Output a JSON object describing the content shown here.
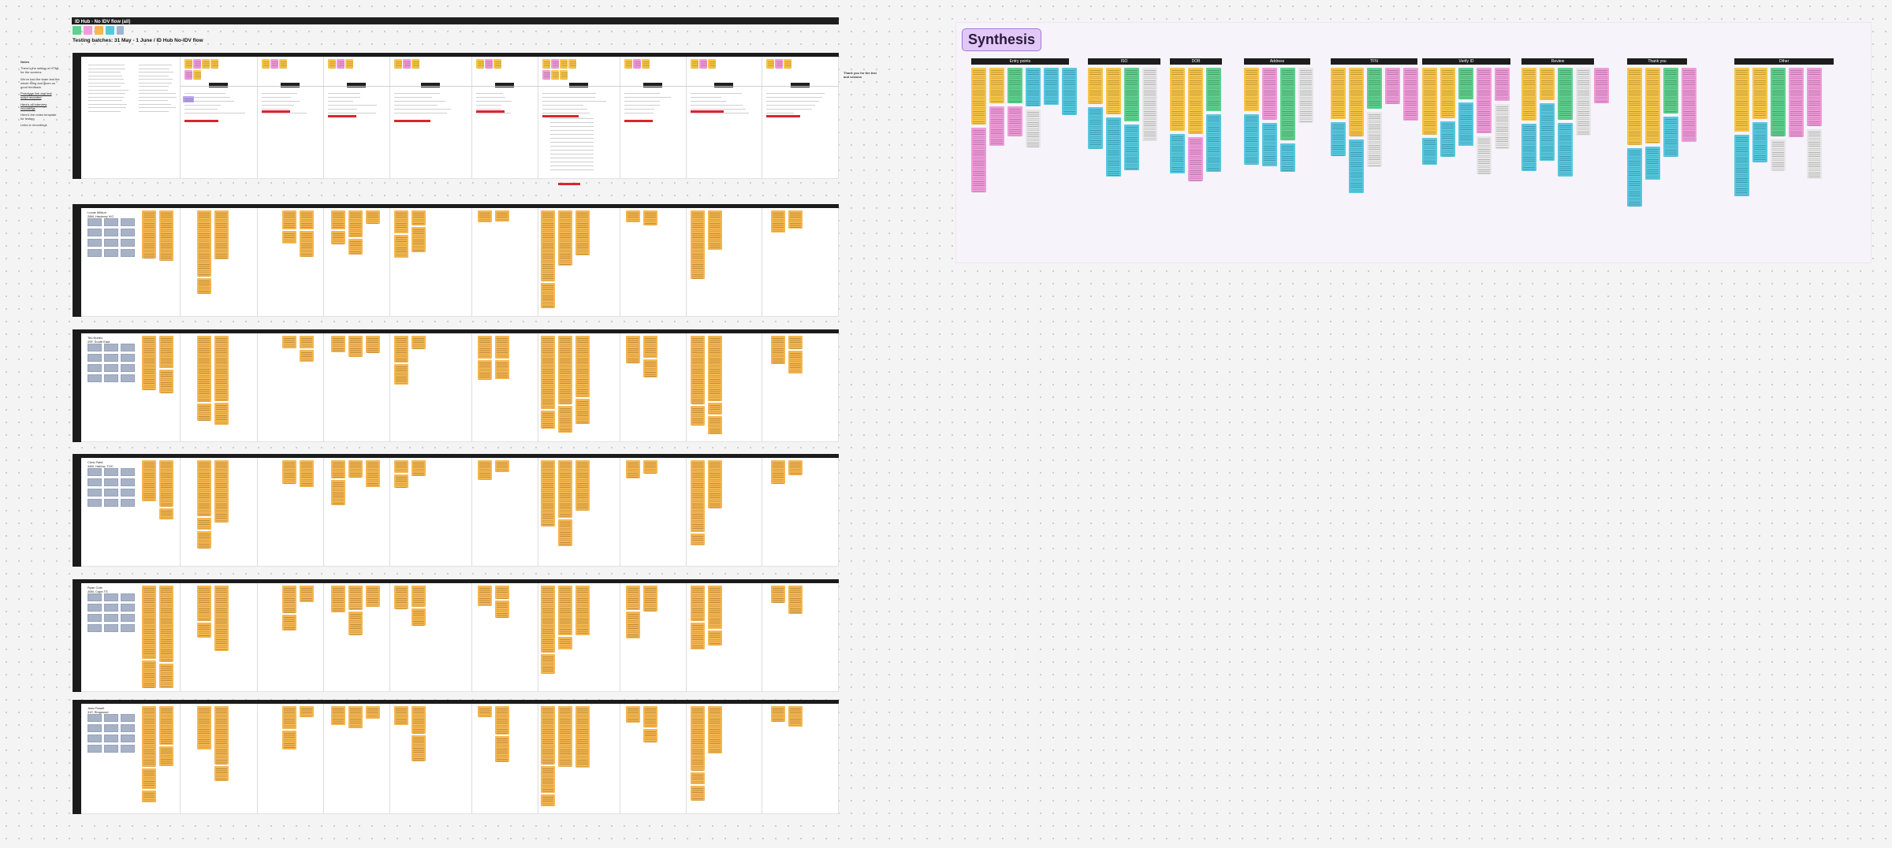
{
  "board": {
    "title": "ID Hub - No IDV flow (all)",
    "subtitle": "Testing batches: 31 May - 1 June / ID Hub No-IDV flow",
    "notes": {
      "heading": "Notes",
      "lines": [
        "There's the setting of HTML for the screens",
        "We've had the team test the whole thing and given us good feedback",
        "Prototype link and test script recorded",
        "Here's all interview recordings",
        "Here's the notes template for testing",
        "Links to recordings"
      ]
    },
    "sections": [
      {
        "participant": "Lucas Wilson\n28M, Hackney VIC"
      },
      {
        "participant": "Teo Nunez\n29F, South East"
      },
      {
        "participant": "Chris Patel\n34M, Harlow, TOC"
      },
      {
        "participant": "Ryan Cole\n26M, Cape TS"
      },
      {
        "participant": "Jess Powell\n31F, Ringwood"
      }
    ],
    "flow_sticky_cols": [
      "Ruh Reason & Intro",
      "Entry 1",
      "Entry 2",
      "Entry 3",
      "Entry 4",
      "Entry 5",
      "Entry 6",
      "Entry 7",
      "Entry 8",
      "Entry 9",
      "Entry 10"
    ],
    "feedback_heading": "Thank you for the test and session"
  },
  "synthesis": {
    "title": "Synthesis",
    "themes": [
      "Entry points",
      "ISO",
      "DOB",
      "Address",
      "TFN",
      "Verify ID",
      "Review",
      "Thank you",
      "Other"
    ]
  },
  "colors": {
    "yellow": "#f7c548",
    "orange": "#f5b64f",
    "pink": "#ef9bd9",
    "green": "#5fd08d",
    "blue": "#55c8df",
    "grey": "#e6e6e6",
    "synthesis_tag": "#e2c8f6"
  }
}
